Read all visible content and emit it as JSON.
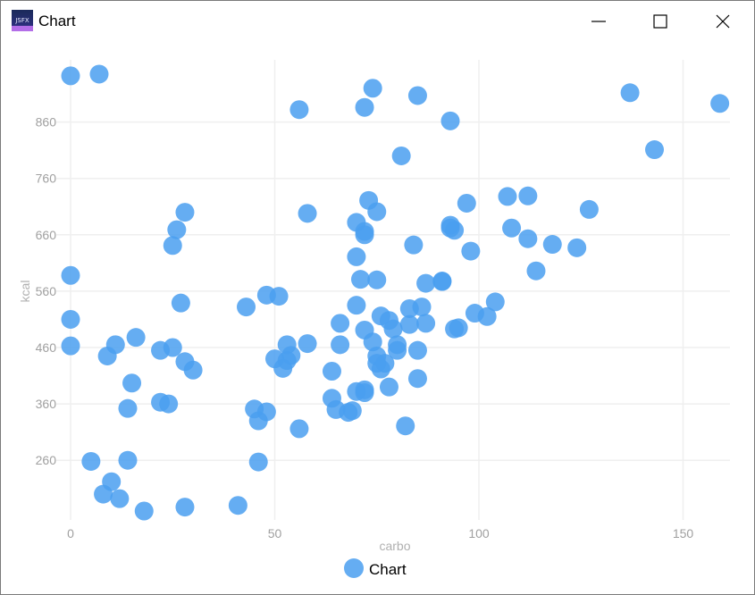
{
  "window": {
    "title": "Chart",
    "icon": "app-logo-icon",
    "controls": [
      "minimize-icon",
      "maximize-icon",
      "close-icon"
    ]
  },
  "colors": {
    "point": "#4a9ff0",
    "grid": "#efefef",
    "axis_text": "#a0a0a0"
  },
  "chart_data": {
    "type": "scatter",
    "xlabel": "carbo",
    "ylabel": "kcal",
    "xlim": [
      0,
      160
    ],
    "ylim": [
      170,
      990
    ],
    "xticks": [
      0,
      50,
      100,
      150
    ],
    "yticks": [
      260,
      360,
      460,
      560,
      660,
      760,
      860
    ],
    "grid": true,
    "legend": "bottom-center",
    "series": [
      {
        "name": "Chart",
        "points": [
          [
            0,
            942
          ],
          [
            7,
            945
          ],
          [
            0,
            588
          ],
          [
            0,
            510
          ],
          [
            0,
            463
          ],
          [
            5,
            258
          ],
          [
            8,
            200
          ],
          [
            10,
            222
          ],
          [
            12,
            192
          ],
          [
            18,
            170
          ],
          [
            9,
            445
          ],
          [
            11,
            465
          ],
          [
            14,
            260
          ],
          [
            14,
            352
          ],
          [
            15,
            397
          ],
          [
            16,
            478
          ],
          [
            22,
            455
          ],
          [
            22,
            363
          ],
          [
            24,
            360
          ],
          [
            25,
            460
          ],
          [
            25,
            641
          ],
          [
            26,
            669
          ],
          [
            27,
            539
          ],
          [
            28,
            700
          ],
          [
            28,
            435
          ],
          [
            28,
            177
          ],
          [
            30,
            420
          ],
          [
            41,
            180
          ],
          [
            43,
            532
          ],
          [
            45,
            351
          ],
          [
            46,
            330
          ],
          [
            46,
            257
          ],
          [
            48,
            346
          ],
          [
            48,
            553
          ],
          [
            50,
            440
          ],
          [
            51,
            551
          ],
          [
            52,
            423
          ],
          [
            53,
            437
          ],
          [
            53,
            465
          ],
          [
            54,
            446
          ],
          [
            56,
            882
          ],
          [
            56,
            316
          ],
          [
            58,
            698
          ],
          [
            58,
            467
          ],
          [
            64,
            418
          ],
          [
            64,
            370
          ],
          [
            65,
            350
          ],
          [
            66,
            465
          ],
          [
            66,
            503
          ],
          [
            68,
            345
          ],
          [
            69,
            348
          ],
          [
            70,
            382
          ],
          [
            70,
            535
          ],
          [
            70,
            621
          ],
          [
            70,
            682
          ],
          [
            71,
            581
          ],
          [
            72,
            886
          ],
          [
            72,
            380
          ],
          [
            72,
            385
          ],
          [
            72,
            491
          ],
          [
            72,
            666
          ],
          [
            72,
            660
          ],
          [
            73,
            721
          ],
          [
            74,
            920
          ],
          [
            74,
            470
          ],
          [
            75,
            445
          ],
          [
            75,
            432
          ],
          [
            75,
            701
          ],
          [
            75,
            580
          ],
          [
            76,
            422
          ],
          [
            76,
            516
          ],
          [
            77,
            432
          ],
          [
            78,
            390
          ],
          [
            78,
            508
          ],
          [
            79,
            493
          ],
          [
            80,
            465
          ],
          [
            80,
            455
          ],
          [
            81,
            800
          ],
          [
            82,
            321
          ],
          [
            83,
            501
          ],
          [
            83,
            529
          ],
          [
            84,
            642
          ],
          [
            85,
            907
          ],
          [
            85,
            455
          ],
          [
            85,
            405
          ],
          [
            86,
            532
          ],
          [
            87,
            503
          ],
          [
            87,
            574
          ],
          [
            91,
            577
          ],
          [
            91,
            578
          ],
          [
            93,
            862
          ],
          [
            93,
            677
          ],
          [
            93,
            672
          ],
          [
            94,
            668
          ],
          [
            94,
            493
          ],
          [
            95,
            495
          ],
          [
            97,
            716
          ],
          [
            98,
            631
          ],
          [
            99,
            521
          ],
          [
            102,
            515
          ],
          [
            104,
            541
          ],
          [
            107,
            728
          ],
          [
            108,
            672
          ],
          [
            112,
            729
          ],
          [
            112,
            653
          ],
          [
            114,
            596
          ],
          [
            118,
            643
          ],
          [
            124,
            637
          ],
          [
            127,
            705
          ],
          [
            137,
            912
          ],
          [
            143,
            811
          ],
          [
            159,
            893
          ]
        ]
      }
    ]
  }
}
